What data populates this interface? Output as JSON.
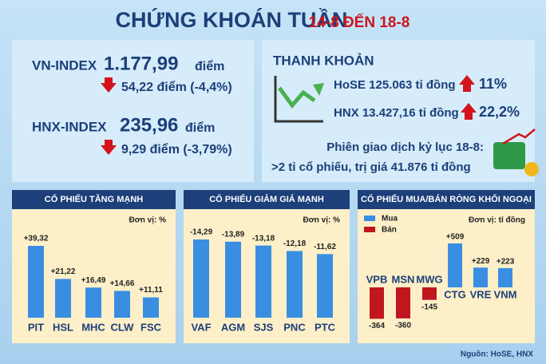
{
  "header": {
    "title": "CHỨNG KHOÁN TUẦN",
    "dates": "14-8 ĐẾN 18-8"
  },
  "indexes": [
    {
      "name": "VN-INDEX",
      "value": "1.177,99",
      "unit": "điểm",
      "change": "54,22 điểm (-4,4%)"
    },
    {
      "name": "HNX-INDEX",
      "value": "235,96",
      "unit": "điểm",
      "change": "9,29 điểm (-3,79%)"
    }
  ],
  "liquidity": {
    "title": "THANH KHOẢN",
    "rows": [
      {
        "text": "HoSE 125.063 tỉ đồng",
        "change": "11%"
      },
      {
        "text": "HNX 13.427,16 tỉ đồng",
        "change": "22,2%"
      }
    ],
    "record": [
      "Phiên giao dịch kỷ lục 18-8:",
      ">2 tỉ cổ phiếu, trị giá 41.876 tỉ đồng"
    ]
  },
  "chart_data": [
    {
      "type": "bar",
      "title": "CỔ PHIẾU TĂNG MẠNH",
      "unit": "Đơn vị: %",
      "color": "#3a8ee2",
      "categories": [
        "PIT",
        "HSL",
        "MHC",
        "CLW",
        "FSC"
      ],
      "values": [
        39.32,
        21.22,
        16.49,
        14.66,
        11.11
      ],
      "value_labels": [
        "+39,32",
        "+21,22",
        "+16,49",
        "+14,66",
        "+11,11"
      ]
    },
    {
      "type": "bar",
      "title": "CỔ PHIẾU GIẢM GIÁ MẠNH",
      "unit": "Đơn vị: %",
      "color": "#3a8ee2",
      "categories": [
        "VAF",
        "AGM",
        "SJS",
        "PNC",
        "PTC"
      ],
      "values": [
        -14.29,
        -13.89,
        -13.18,
        -12.18,
        -11.62
      ],
      "value_labels": [
        "-14,29",
        "-13,89",
        "-13,18",
        "-12,18",
        "-11,62"
      ]
    },
    {
      "type": "bar",
      "title": "CỔ PHIẾU MUA/BÁN RÒNG KHỐI NGOẠI",
      "unit": "Đơn vị: tỉ đồng",
      "categories": [
        "VPB",
        "MSN",
        "MWG",
        "CTG",
        "VRE",
        "VNM"
      ],
      "series": [
        {
          "name": "Mua",
          "color": "#3a8ee2",
          "values": [
            null,
            null,
            null,
            509,
            229,
            223
          ],
          "value_labels": [
            null,
            null,
            null,
            "+509",
            "+229",
            "+223"
          ]
        },
        {
          "name": "Bán",
          "color": "#c0161d",
          "values": [
            -364,
            -360,
            -145,
            null,
            null,
            null
          ]
        }
      ]
    }
  ],
  "source": "Nguồn: HoSE, HNX"
}
